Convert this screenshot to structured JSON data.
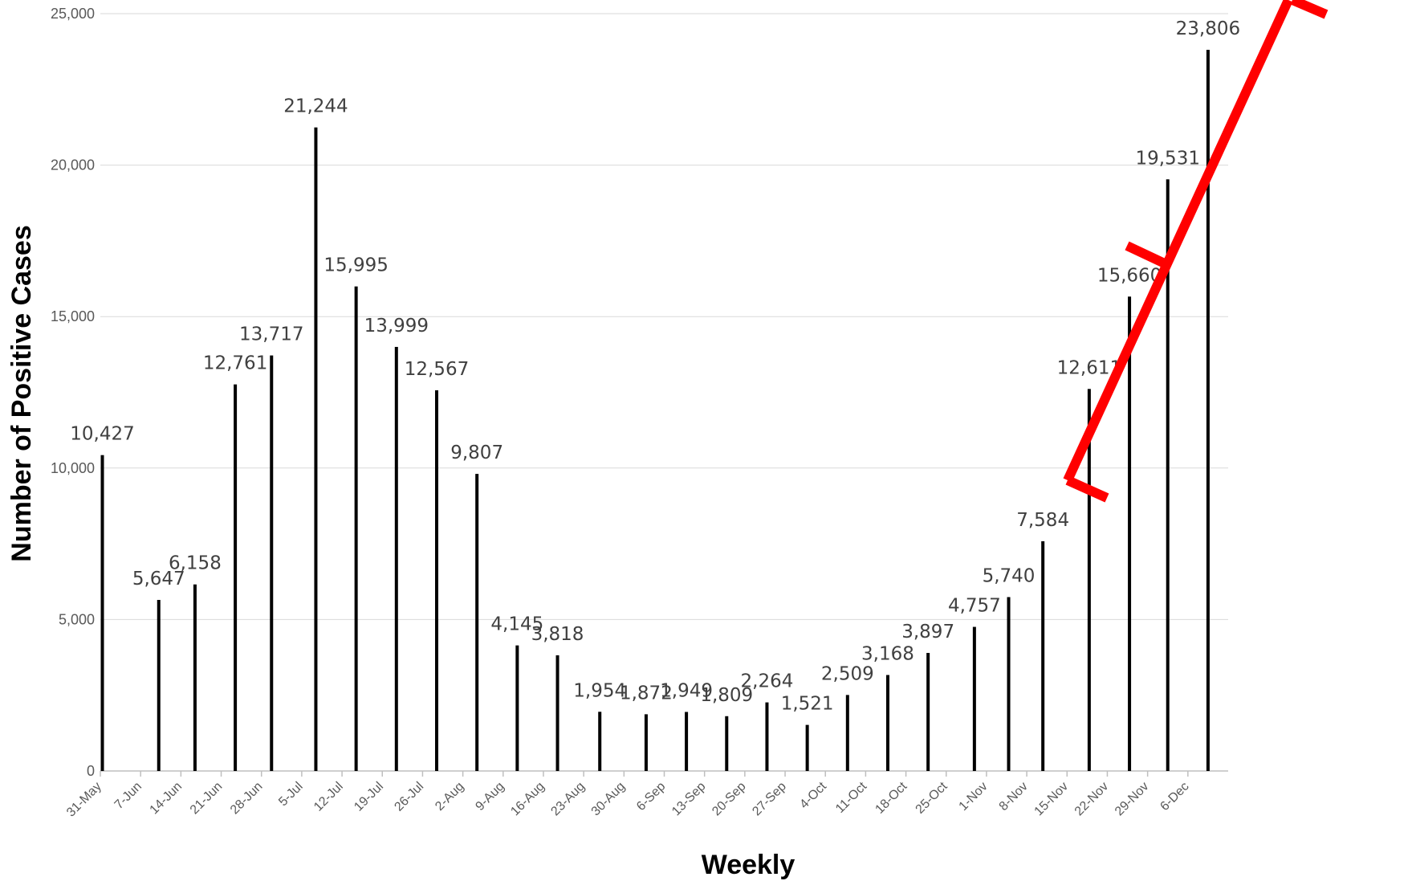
{
  "chart_data": {
    "type": "bar",
    "xlabel": "Weekly",
    "ylabel": "Number of Positive Cases",
    "ylim": [
      0,
      25000
    ],
    "yticks": [
      0,
      5000,
      10000,
      15000,
      20000,
      25000
    ],
    "ytick_labels": [
      "0",
      "5,000",
      "10,000",
      "15,000",
      "20,000",
      "25,000"
    ],
    "grid": "horizontal",
    "categories": [
      "31-May",
      "7-Jun",
      "14-Jun",
      "21-Jun",
      "28-Jun",
      "5-Jul",
      "12-Jul",
      "19-Jul",
      "26-Jul",
      "2-Aug",
      "9-Aug",
      "16-Aug",
      "23-Aug",
      "30-Aug",
      "6-Sep",
      "13-Sep",
      "20-Sep",
      "27-Sep",
      "4-Oct",
      "11-Oct",
      "18-Oct",
      "25-Oct",
      "1-Nov",
      "8-Nov",
      "15-Nov",
      "22-Nov",
      "29-Nov",
      "6-Dec"
    ],
    "bars": [
      {
        "x": 0.05,
        "value": 10427,
        "label": "10,427"
      },
      {
        "x": 1.45,
        "value": 5647,
        "label": "5,647"
      },
      {
        "x": 2.35,
        "value": 6158,
        "label": "6,158"
      },
      {
        "x": 3.35,
        "value": 12761,
        "label": "12,761"
      },
      {
        "x": 4.25,
        "value": 13717,
        "label": "13,717"
      },
      {
        "x": 5.35,
        "value": 21244,
        "label": "21,244"
      },
      {
        "x": 6.35,
        "value": 15995,
        "label": "15,995"
      },
      {
        "x": 7.35,
        "value": 13999,
        "label": "13,999"
      },
      {
        "x": 8.35,
        "value": 12567,
        "label": "12,567"
      },
      {
        "x": 9.35,
        "value": 9807,
        "label": "9,807"
      },
      {
        "x": 10.35,
        "value": 4145,
        "label": "4,145"
      },
      {
        "x": 11.35,
        "value": 3818,
        "label": "3,818"
      },
      {
        "x": 12.4,
        "value": 1954,
        "label": "1,954"
      },
      {
        "x": 13.55,
        "value": 1872,
        "label": "1,872"
      },
      {
        "x": 14.55,
        "value": 1949,
        "label": "1,949"
      },
      {
        "x": 15.55,
        "value": 1809,
        "label": "1,809"
      },
      {
        "x": 16.55,
        "value": 2264,
        "label": "2,264"
      },
      {
        "x": 17.55,
        "value": 1521,
        "label": "1,521"
      },
      {
        "x": 18.55,
        "value": 2509,
        "label": "2,509"
      },
      {
        "x": 19.55,
        "value": 3168,
        "label": "3,168"
      },
      {
        "x": 20.55,
        "value": 3897,
        "label": "3,897"
      },
      {
        "x": 21.7,
        "value": 4757,
        "label": "4,757"
      },
      {
        "x": 22.55,
        "value": 5740,
        "label": "5,740"
      },
      {
        "x": 23.4,
        "value": 7584,
        "label": "7,584"
      },
      {
        "x": 24.55,
        "value": 12611,
        "label": "12,611"
      },
      {
        "x": 25.55,
        "value": 15660,
        "label": "15,660"
      },
      {
        "x": 26.5,
        "value": 19531,
        "label": "19,531"
      },
      {
        "x": 27.5,
        "value": 23806,
        "label": "23,806"
      }
    ],
    "annotation": {
      "shape": "red bracket line",
      "color": "#ff0000"
    }
  },
  "colors": {
    "bar": "#000000",
    "grid": "#d9d9d9",
    "annotation": "#ff0000"
  }
}
